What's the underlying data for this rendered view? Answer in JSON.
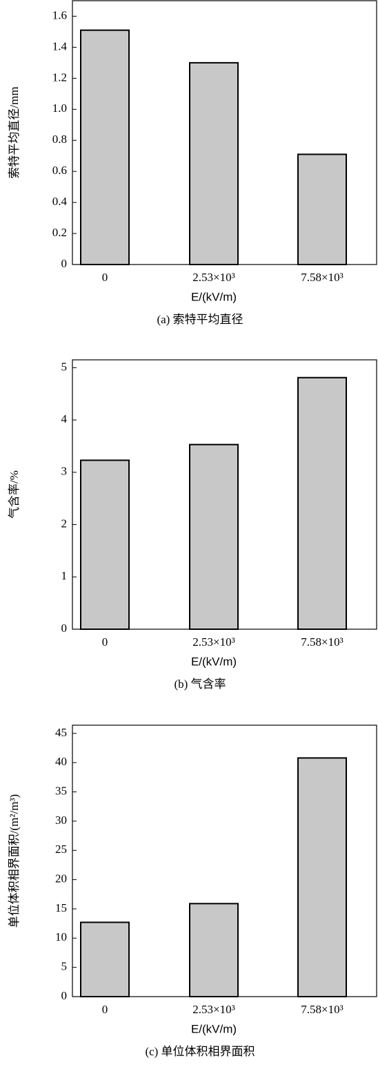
{
  "chart_data": [
    {
      "type": "bar",
      "caption": "(a) 索特平均直径",
      "x_label": "E/(kV/m)",
      "y_label": "索特平均直径/mm",
      "categories": [
        "0",
        "2.53×10³",
        "7.58×10³"
      ],
      "values": [
        1.51,
        1.3,
        0.71
      ],
      "color": "#c8c8c8",
      "ylim": [
        0,
        1.7
      ],
      "yticks": [
        0,
        {
          "value": 0.2,
          "label": "0.2"
        },
        {
          "value": 0.4,
          "label": "0.4"
        },
        {
          "value": 0.6,
          "label": "0.6"
        },
        {
          "value": 0.8,
          "label": "0.8"
        },
        {
          "value": 1.0,
          "label": "1.0"
        },
        {
          "value": 1.2,
          "label": "1.2"
        },
        {
          "value": 1.4,
          "label": "1.4"
        },
        {
          "value": 1.6,
          "label": "1.6"
        }
      ]
    },
    {
      "type": "bar",
      "caption": "(b) 气含率",
      "x_label": "E/(kV/m)",
      "y_label": "气含率/%",
      "categories": [
        "0",
        "2.53×10³",
        "7.58×10³"
      ],
      "values": [
        3.23,
        3.53,
        4.81
      ],
      "color": "#c8c8c8",
      "ylim": [
        0,
        5.15
      ],
      "yticks": [
        0,
        1,
        2,
        3,
        4,
        5
      ]
    },
    {
      "type": "bar",
      "caption": "(c) 单位体积相界面积",
      "x_label": "E/(kV/m)",
      "y_label": "单位体积相界面积/(m²/m³)",
      "categories": [
        "0",
        "2.53×10³",
        "7.58×10³"
      ],
      "values": [
        12.7,
        15.9,
        40.8
      ],
      "color": "#c8c8c8",
      "ylim": [
        0,
        46.4
      ],
      "yticks": [
        0,
        5,
        10,
        15,
        20,
        25,
        30,
        35,
        40,
        45
      ]
    }
  ]
}
